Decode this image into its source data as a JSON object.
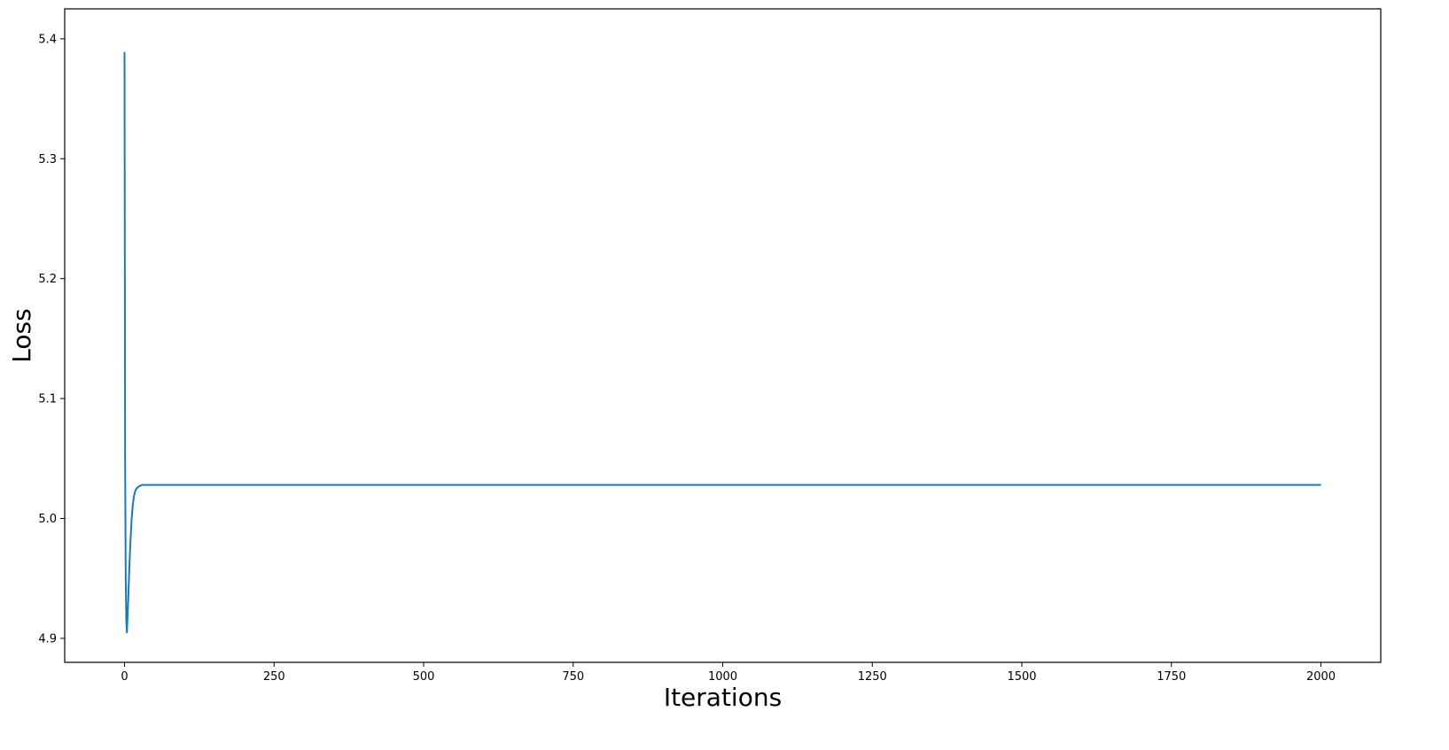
{
  "chart_data": {
    "type": "line",
    "title": "",
    "xlabel": "Iterations",
    "ylabel": "Loss",
    "xlim": [
      -100,
      2100
    ],
    "ylim": [
      4.88,
      5.425
    ],
    "xticks": [
      0,
      250,
      500,
      750,
      1000,
      1250,
      1500,
      1750,
      2000
    ],
    "yticks": [
      4.9,
      5.0,
      5.1,
      5.2,
      5.3,
      5.4
    ],
    "grid": false,
    "legend": "none",
    "series": [
      {
        "color": "#1f77b4",
        "x": [
          0,
          1,
          2,
          3,
          4,
          6,
          8,
          10,
          12,
          14,
          16,
          18,
          20,
          25,
          30,
          40,
          60,
          100,
          200,
          500,
          1000,
          1500,
          2000
        ],
        "y": [
          5.389,
          5.05,
          4.95,
          4.915,
          4.905,
          4.93,
          4.958,
          4.982,
          5.0,
          5.012,
          5.019,
          5.023,
          5.025,
          5.027,
          5.028,
          5.028,
          5.028,
          5.028,
          5.028,
          5.028,
          5.028,
          5.028,
          5.028
        ]
      }
    ]
  }
}
